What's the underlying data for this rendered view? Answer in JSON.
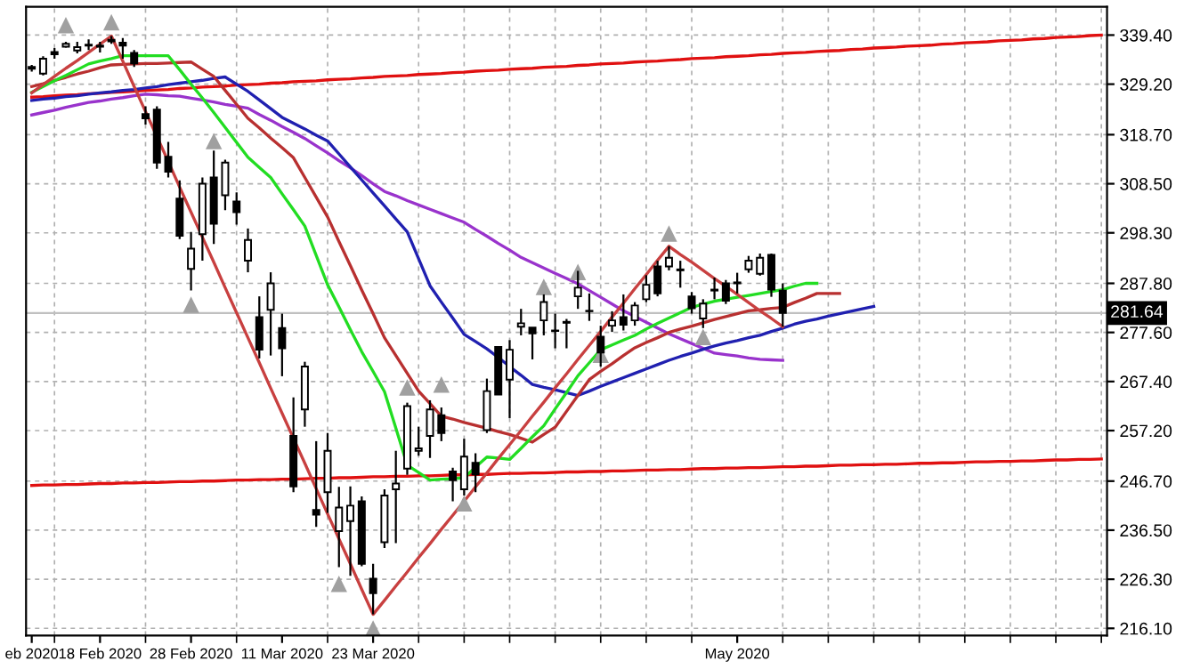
{
  "chart_data": {
    "type": "candlestick",
    "categories": [
      "eb 2020",
      null,
      null,
      null,
      null,
      null,
      "18 Feb 2020",
      null,
      null,
      null,
      null,
      null,
      null,
      null,
      "28 Feb 2020",
      null,
      null,
      null,
      null,
      null,
      null,
      null,
      "11 Mar 2020",
      null,
      null,
      null,
      null,
      null,
      null,
      null,
      "23 Mar 2020",
      null,
      null,
      null,
      null,
      null,
      null,
      null,
      null,
      null,
      null,
      null,
      null,
      null,
      null,
      null,
      null,
      null,
      null,
      null,
      null,
      null,
      null,
      null,
      null,
      null,
      null,
      null,
      null,
      null,
      null,
      null,
      "May 2020",
      null,
      null,
      null,
      null,
      null,
      null,
      null,
      null,
      null,
      null,
      null,
      null,
      null,
      null,
      null,
      null,
      null,
      null,
      null,
      null,
      null,
      null,
      null,
      null,
      null,
      null,
      null,
      null,
      null,
      null,
      null,
      null
    ],
    "ohlc": [
      [
        332.8,
        333.2,
        331.8,
        332.4
      ],
      [
        331.4,
        335.0,
        331.0,
        334.5
      ],
      [
        335.9,
        336.7,
        334.5,
        335.4
      ],
      [
        337.0,
        338.0,
        336.8,
        337.6
      ],
      [
        336.2,
        338.0,
        335.6,
        336.9
      ],
      [
        337.2,
        338.5,
        336.3,
        337.4
      ],
      [
        337.0,
        338.0,
        335.8,
        337.2
      ],
      [
        338.1,
        339.2,
        337.6,
        338.4
      ],
      [
        337.8,
        338.8,
        334.5,
        337.2
      ],
      [
        335.7,
        336.3,
        332.8,
        333.5
      ],
      [
        323.0,
        324.6,
        320.8,
        322.1
      ],
      [
        323.9,
        324.6,
        311.6,
        312.9
      ],
      [
        314.1,
        317.2,
        309.8,
        311.0
      ],
      [
        305.4,
        309.2,
        297.0,
        297.7
      ],
      [
        290.8,
        298.5,
        286.3,
        295.0
      ],
      [
        298.0,
        309.8,
        292.5,
        308.5
      ],
      [
        309.8,
        315.4,
        296.0,
        300.2
      ],
      [
        306.1,
        313.5,
        303.0,
        312.9
      ],
      [
        304.8,
        306.7,
        300.0,
        302.6
      ],
      [
        292.5,
        299.2,
        290.1,
        296.8
      ],
      [
        280.8,
        285.1,
        272.2,
        274.0
      ],
      [
        282.3,
        290.1,
        272.8,
        287.8
      ],
      [
        278.5,
        281.5,
        268.5,
        274.3
      ],
      [
        256.1,
        264.1,
        244.4,
        245.6
      ],
      [
        261.6,
        271.5,
        258.0,
        270.5
      ],
      [
        240.7,
        255.0,
        237.2,
        239.7
      ],
      [
        244.4,
        256.7,
        240.1,
        253.0
      ],
      [
        236.3,
        245.5,
        228.8,
        241.2
      ],
      [
        238.4,
        245.6,
        227.0,
        241.6
      ],
      [
        242.5,
        243.5,
        229.0,
        229.5
      ],
      [
        226.4,
        229.5,
        219.0,
        223.4
      ],
      [
        234.0,
        245.0,
        232.8,
        243.7
      ],
      [
        245.0,
        253.0,
        233.8,
        246.2
      ],
      [
        249.3,
        263.0,
        248.0,
        262.3
      ],
      [
        253.0,
        258.0,
        252.0,
        253.5
      ],
      [
        256.1,
        263.5,
        251.5,
        261.6
      ],
      [
        260.4,
        262.0,
        255.0,
        256.7
      ],
      [
        248.7,
        249.5,
        242.5,
        246.9
      ],
      [
        245.0,
        255.5,
        243.7,
        251.8
      ],
      [
        250.5,
        252.5,
        244.4,
        248.1
      ],
      [
        257.3,
        268.0,
        256.7,
        265.4
      ],
      [
        274.6,
        274.6,
        264.7,
        264.7
      ],
      [
        267.8,
        276.0,
        259.8,
        274.0
      ],
      [
        278.8,
        282.5,
        277.0,
        279.5
      ],
      [
        278.6,
        278.6,
        272.0,
        277.4
      ],
      [
        280.1,
        285.5,
        277.0,
        283.9
      ],
      [
        278.0,
        281.5,
        274.3,
        277.9
      ],
      [
        279.6,
        280.4,
        274.3,
        279.8
      ],
      [
        285.1,
        290.4,
        282.5,
        286.9
      ],
      [
        282.0,
        285.7,
        280.0,
        282.1
      ],
      [
        276.7,
        279.0,
        270.5,
        273.4
      ],
      [
        279.0,
        282.0,
        277.7,
        280.1
      ],
      [
        280.8,
        285.5,
        278.0,
        279.2
      ],
      [
        280.1,
        283.9,
        279.0,
        283.2
      ],
      [
        284.5,
        289.5,
        283.9,
        287.5
      ],
      [
        291.3,
        292.5,
        285.1,
        285.7
      ],
      [
        291.3,
        295.5,
        290.5,
        293.1
      ],
      [
        290.7,
        292.5,
        286.9,
        290.5
      ],
      [
        285.1,
        286.0,
        281.5,
        282.6
      ],
      [
        280.5,
        284.5,
        278.5,
        283.6
      ],
      [
        286.3,
        289.0,
        284.5,
        286.5
      ],
      [
        287.8,
        288.5,
        283.5,
        284.2
      ],
      [
        287.8,
        290.0,
        285.7,
        288.0
      ],
      [
        290.7,
        293.5,
        290.0,
        292.5
      ],
      [
        289.8,
        294.0,
        289.4,
        293.1
      ],
      [
        293.7,
        294.0,
        285.0,
        286.5
      ],
      [
        286.3,
        287.8,
        278.8,
        281.64
      ],
      null,
      null,
      null,
      null,
      null,
      null,
      null,
      null,
      null,
      null,
      null,
      null,
      null,
      null,
      null,
      null,
      null,
      null,
      null,
      null,
      null,
      null,
      null,
      null,
      null,
      null,
      null,
      null
    ],
    "series": [
      {
        "type": "line",
        "color": "#e01010",
        "values": [
          326.5,
          326.6,
          326.8,
          326.9,
          327.0,
          327.2,
          327.3,
          327.5,
          327.6,
          327.7,
          327.9,
          328.0,
          328.1,
          328.3,
          328.4,
          328.6,
          328.7,
          328.8,
          329.0,
          329.1,
          329.2,
          329.4,
          329.5,
          329.7,
          329.8,
          329.9,
          330.1,
          330.2,
          330.3,
          330.5,
          330.6,
          330.8,
          330.9,
          331.0,
          331.2,
          331.3,
          331.4,
          331.6,
          331.7,
          331.9,
          332.0,
          332.1,
          332.3,
          332.4,
          332.5,
          332.7,
          332.8,
          332.9,
          333.1,
          333.2,
          333.4,
          333.5,
          333.6,
          333.8,
          333.9,
          334.0,
          334.2,
          334.3,
          334.5,
          334.6,
          334.7,
          334.9,
          335.0,
          335.1,
          335.3,
          335.4,
          335.6,
          335.7,
          335.8,
          336.0,
          336.1,
          336.2,
          336.4,
          336.5,
          336.7,
          336.8,
          336.9,
          337.1,
          337.2,
          337.3,
          337.5,
          337.6,
          337.8,
          337.9,
          338.0,
          338.2,
          338.3,
          338.4,
          338.6,
          338.7,
          338.9,
          339.0,
          339.1,
          339.3,
          339.4
        ]
      },
      {
        "type": "line",
        "color": "#e01010",
        "values": [
          245.8,
          245.9,
          245.9,
          246.0,
          246.0,
          246.1,
          246.2,
          246.2,
          246.3,
          246.3,
          246.4,
          246.4,
          246.5,
          246.6,
          246.6,
          246.7,
          246.7,
          246.8,
          246.9,
          246.9,
          247.0,
          247.0,
          247.1,
          247.1,
          247.2,
          247.3,
          247.3,
          247.4,
          247.4,
          247.5,
          247.6,
          247.6,
          247.7,
          247.7,
          247.8,
          247.8,
          247.9,
          248.0,
          248.0,
          248.1,
          248.1,
          248.2,
          248.3,
          248.3,
          248.4,
          248.4,
          248.5,
          248.6,
          248.6,
          248.7,
          248.7,
          248.8,
          248.8,
          248.9,
          249.0,
          249.0,
          249.1,
          249.1,
          249.2,
          249.3,
          249.3,
          249.4,
          249.4,
          249.5,
          249.5,
          249.6,
          249.7,
          249.7,
          249.8,
          249.8,
          249.9,
          250.0,
          250.0,
          250.1,
          250.1,
          250.2,
          250.2,
          250.3,
          250.4,
          250.4,
          250.5,
          250.5,
          250.6,
          250.7,
          250.7,
          250.8,
          250.8,
          250.9,
          250.9,
          251.0,
          251.1,
          251.1,
          251.2,
          251.2,
          251.3
        ]
      },
      {
        "type": "line",
        "color": "#9933cc",
        "values": [
          322.8,
          323.3,
          323.8,
          324.4,
          324.9,
          325.4,
          325.7,
          326.1,
          326.4,
          326.8,
          327.1,
          327.0,
          326.8,
          326.7,
          326.3,
          325.9,
          325.5,
          325.0,
          324.6,
          324.2,
          322.9,
          321.7,
          320.4,
          319.2,
          317.9,
          316.4,
          314.9,
          313.3,
          311.8,
          310.2,
          308.5,
          306.9,
          306.0,
          305.0,
          304.1,
          303.2,
          302.3,
          301.4,
          300.5,
          299.0,
          297.6,
          296.1,
          294.7,
          293.2,
          292.1,
          291.0,
          289.9,
          288.8,
          287.7,
          286.3,
          284.9,
          283.5,
          282.1,
          280.9,
          279.7,
          278.5,
          277.3,
          276.3,
          275.3,
          274.3,
          273.3,
          273.0,
          272.7,
          272.3,
          272.0,
          271.9,
          271.8,
          null,
          null,
          null,
          null,
          null,
          null,
          null,
          null,
          null,
          null,
          null,
          null,
          null,
          null,
          null,
          null,
          null,
          null,
          null,
          null,
          null,
          null,
          null,
          null,
          null,
          null,
          null,
          null
        ]
      },
      {
        "type": "line",
        "color": "#2020b0",
        "values": [
          325.8,
          326.1,
          326.3,
          326.6,
          326.8,
          327.1,
          327.4,
          327.6,
          327.9,
          328.1,
          328.4,
          328.7,
          329.1,
          329.4,
          329.7,
          330.0,
          330.4,
          330.7,
          329.2,
          327.7,
          325.9,
          324.1,
          322.3,
          321.1,
          319.9,
          318.6,
          317.4,
          314.7,
          312.0,
          309.3,
          306.6,
          303.9,
          301.2,
          298.5,
          292.9,
          287.3,
          283.9,
          280.6,
          277.2,
          275.7,
          274.2,
          272.4,
          270.5,
          268.7,
          266.8,
          266.2,
          265.7,
          265.1,
          264.5,
          265.4,
          266.4,
          267.3,
          268.2,
          269.1,
          270.0,
          270.9,
          271.8,
          272.6,
          273.3,
          274.1,
          274.8,
          275.4,
          275.9,
          276.5,
          277.0,
          277.8,
          278.5,
          279.3,
          279.9,
          280.4,
          281.0,
          281.5,
          282.0,
          282.5,
          283.0,
          null,
          null,
          null,
          null,
          null,
          null,
          null,
          null,
          null,
          null,
          null,
          null,
          null,
          null,
          null,
          null,
          null,
          null,
          null,
          null
        ]
      },
      {
        "type": "line",
        "color": "#b83030",
        "values": [
          328.7,
          329.3,
          330.0,
          330.6,
          331.3,
          331.9,
          332.6,
          333.2,
          333.3,
          333.4,
          333.5,
          333.5,
          333.6,
          333.7,
          333.8,
          332.3,
          330.8,
          327.9,
          325.0,
          322.1,
          320.1,
          318.0,
          316.0,
          313.9,
          309.8,
          305.7,
          301.6,
          296.5,
          291.5,
          286.4,
          281.5,
          276.5,
          272.8,
          269.1,
          265.4,
          262.8,
          260.2,
          259.6,
          258.9,
          258.3,
          257.7,
          257.0,
          256.4,
          255.6,
          254.8,
          256.4,
          257.9,
          261.2,
          264.5,
          267.8,
          269.5,
          271.1,
          272.8,
          274.4,
          275.5,
          276.5,
          277.6,
          278.3,
          278.9,
          279.6,
          280.3,
          280.9,
          281.5,
          282.1,
          282.3,
          282.6,
          282.8,
          283.8,
          284.7,
          285.7,
          285.7,
          285.7,
          null,
          null,
          null,
          null,
          null,
          null,
          null,
          null,
          null,
          null,
          null,
          null,
          null,
          null,
          null,
          null,
          null,
          null,
          null,
          null,
          null,
          null,
          null
        ]
      },
      {
        "type": "line",
        "color": "#22dd22",
        "values": [
          327.5,
          328.7,
          329.9,
          331.0,
          332.2,
          333.4,
          334.0,
          334.5,
          335.1,
          335.1,
          335.1,
          335.1,
          335.1,
          332.2,
          329.2,
          326.3,
          323.3,
          320.2,
          317.1,
          314.0,
          311.9,
          309.8,
          306.4,
          303.1,
          299.7,
          293.6,
          287.5,
          282.9,
          278.2,
          273.6,
          269.5,
          265.3,
          257.7,
          250.0,
          248.5,
          246.9,
          247.1,
          247.2,
          247.4,
          249.6,
          251.7,
          251.5,
          251.2,
          253.5,
          255.9,
          258.2,
          261.7,
          265.1,
          268.6,
          271.3,
          274.0,
          275.0,
          276.0,
          277.0,
          278.3,
          279.5,
          280.6,
          281.7,
          282.8,
          283.5,
          284.1,
          284.5,
          284.9,
          285.3,
          285.7,
          286.1,
          286.5,
          287.2,
          287.8,
          287.8,
          null,
          null,
          null,
          null,
          null,
          null,
          null,
          null,
          null,
          null,
          null,
          null,
          null,
          null,
          null,
          null,
          null,
          null,
          null,
          null,
          null,
          null,
          null,
          null,
          null
        ]
      },
      {
        "type": "line",
        "color": "#c84040",
        "values": [
          327.4,
          329.1,
          330.8,
          332.5,
          334.1,
          335.8,
          337.5,
          339.2,
          334.0,
          328.7,
          323.5,
          318.3,
          313.1,
          307.8,
          302.6,
          297.4,
          292.2,
          286.9,
          281.7,
          276.5,
          271.3,
          266.0,
          260.8,
          255.6,
          250.4,
          245.1,
          239.9,
          234.7,
          229.5,
          224.2,
          219.0,
          221.9,
          224.9,
          227.8,
          230.8,
          233.7,
          236.7,
          239.6,
          242.5,
          245.5,
          248.4,
          251.4,
          254.3,
          257.2,
          260.2,
          263.1,
          266.1,
          269.0,
          272.0,
          274.9,
          277.8,
          280.8,
          283.7,
          286.7,
          289.6,
          292.6,
          295.5,
          293.8,
          292.2,
          290.5,
          288.8,
          287.2,
          285.5,
          283.8,
          282.1,
          280.5,
          278.8,
          null,
          null,
          null,
          null,
          null,
          null,
          null,
          null,
          null,
          null,
          null,
          null,
          null,
          null,
          null,
          null,
          null,
          null,
          null,
          null,
          null,
          null,
          null,
          null,
          null,
          null,
          null,
          null
        ]
      },
      {
        "type": "scatter",
        "marker": "triangle",
        "color": "#a0a0a0",
        "values": [
          null,
          null,
          null,
          341.3,
          null,
          null,
          null,
          341.9,
          null,
          null,
          null,
          null,
          null,
          null,
          null,
          null,
          317.2,
          null,
          null,
          null,
          null,
          null,
          null,
          null,
          null,
          null,
          null,
          null,
          null,
          null,
          null,
          null,
          null,
          266.0,
          null,
          null,
          266.6,
          null,
          null,
          null,
          null,
          null,
          null,
          null,
          null,
          286.9,
          null,
          null,
          290.0,
          null,
          null,
          null,
          null,
          null,
          null,
          null,
          298.0,
          null,
          null,
          null,
          null,
          null,
          null,
          null,
          null,
          null,
          null,
          null,
          null,
          null,
          null,
          null,
          null,
          null,
          null,
          null,
          null,
          null,
          null,
          null,
          null,
          null,
          null,
          null,
          null,
          null,
          null,
          null,
          null,
          null,
          null,
          null,
          null,
          null,
          null
        ]
      },
      {
        "type": "scatter",
        "marker": "triangle",
        "color": "#a0a0a0",
        "values": [
          null,
          null,
          null,
          null,
          null,
          null,
          null,
          null,
          null,
          null,
          null,
          null,
          null,
          null,
          283.2,
          null,
          null,
          null,
          null,
          null,
          null,
          null,
          null,
          null,
          null,
          null,
          null,
          225.2,
          null,
          null,
          215.9,
          null,
          null,
          null,
          null,
          null,
          null,
          null,
          241.9,
          null,
          null,
          null,
          null,
          null,
          null,
          null,
          null,
          null,
          null,
          null,
          272.8,
          null,
          null,
          null,
          null,
          null,
          null,
          null,
          null,
          276.5,
          null,
          null,
          null,
          null,
          null,
          null,
          null,
          null,
          null,
          null,
          null,
          null,
          null,
          null,
          null,
          null,
          null,
          null,
          null,
          null,
          null,
          null,
          null,
          null,
          null,
          null,
          null,
          null,
          null,
          null,
          null,
          null,
          null,
          null,
          null
        ]
      }
    ],
    "ylim": [
      214.6,
      345.3
    ],
    "yticks": [
      {
        "value": 216.1,
        "label": "216.10"
      },
      {
        "value": 226.3,
        "label": "226.30"
      },
      {
        "value": 236.5,
        "label": "236.50"
      },
      {
        "value": 246.7,
        "label": "246.70"
      },
      {
        "value": 257.2,
        "label": "257.20"
      },
      {
        "value": 267.4,
        "label": "267.40"
      },
      {
        "value": 277.6,
        "label": "277.60"
      },
      {
        "value": 287.8,
        "label": "287.80"
      },
      {
        "value": 298.3,
        "label": "298.30"
      },
      {
        "value": 308.5,
        "label": "308.50"
      },
      {
        "value": 318.7,
        "label": "318.70"
      },
      {
        "value": 329.2,
        "label": "329.20"
      },
      {
        "value": 339.4,
        "label": "339.40"
      }
    ],
    "grid": true,
    "ref_lines": [
      {
        "axis": "y",
        "value": 281.64,
        "label": "281.64",
        "color": "#c0c0c0"
      }
    ]
  }
}
